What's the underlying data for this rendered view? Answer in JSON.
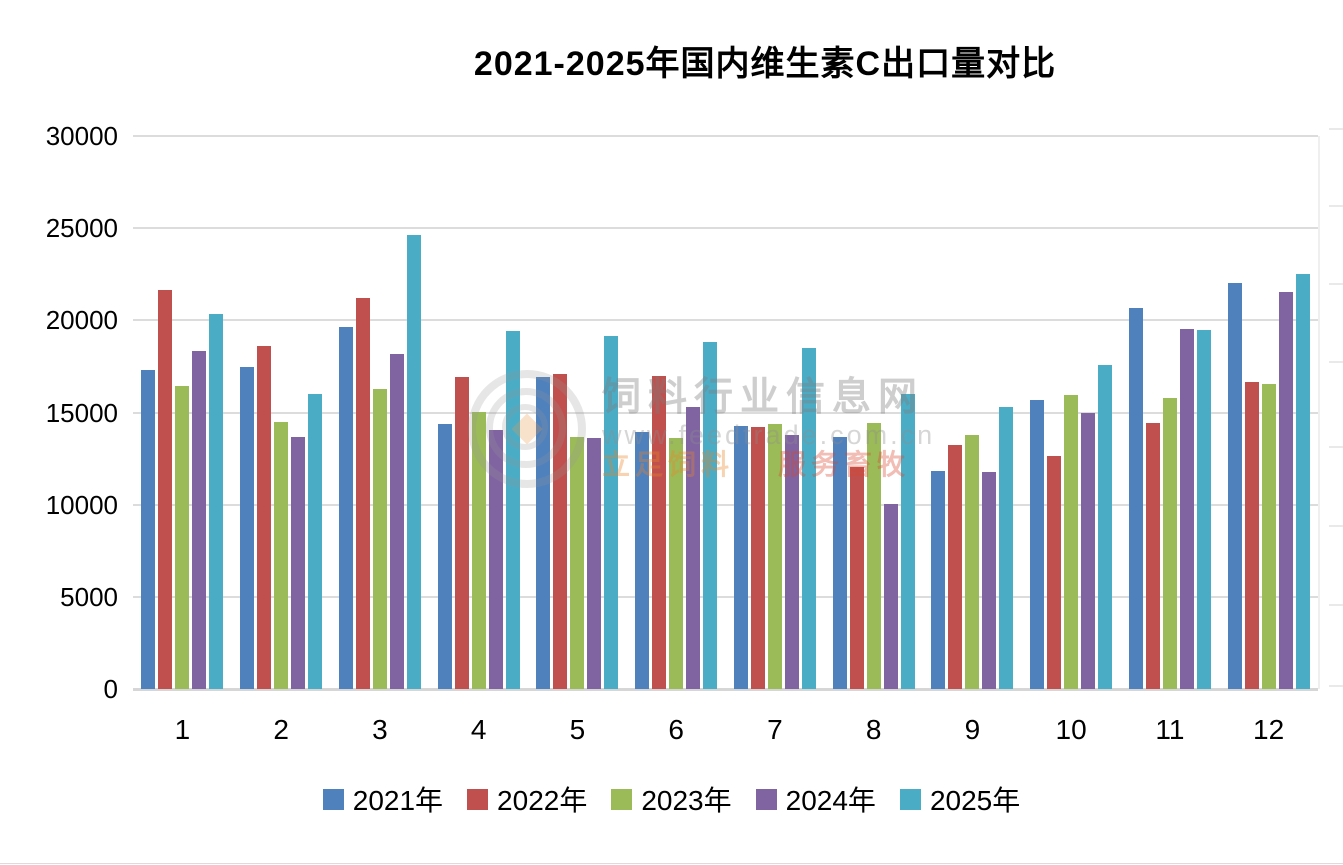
{
  "title": "2021-2025年国内维生素C出口量对比",
  "chart_data": {
    "type": "bar",
    "title": "2021-2025年国内维生素C出口量对比",
    "categories": [
      "1",
      "2",
      "3",
      "4",
      "5",
      "6",
      "7",
      "8",
      "9",
      "10",
      "11",
      "12"
    ],
    "series": [
      {
        "name": "2021年",
        "color": "#4F81BD",
        "values": [
          17300,
          17450,
          19650,
          14400,
          16950,
          13950,
          14250,
          13650,
          11800,
          15700,
          20650,
          22000
        ]
      },
      {
        "name": "2022年",
        "color": "#C0504D",
        "values": [
          21650,
          18600,
          21200,
          16900,
          17100,
          17000,
          14200,
          12050,
          13250,
          12650,
          14450,
          16650
        ]
      },
      {
        "name": "2023年",
        "color": "#9BBB59",
        "values": [
          16450,
          14500,
          16250,
          15000,
          13650,
          13600,
          14400,
          14450,
          13800,
          15950,
          15800,
          16550
        ]
      },
      {
        "name": "2024年",
        "color": "#8064A2",
        "values": [
          18350,
          13650,
          18200,
          14050,
          13600,
          15300,
          13800,
          10050,
          11750,
          14950,
          19550,
          21550
        ]
      },
      {
        "name": "2025年",
        "color": "#4BACC6",
        "values": [
          20350,
          16000,
          24650,
          19400,
          19150,
          18850,
          18500,
          16000,
          15300,
          17600,
          19450,
          22500
        ]
      }
    ],
    "ylim": [
      0,
      30000
    ],
    "yticks": [
      0,
      5000,
      10000,
      15000,
      20000,
      25000,
      30000
    ],
    "xlabel": "",
    "ylabel": "",
    "grid": "horizontal",
    "legend_position": "bottom"
  },
  "watermark": {
    "line1": "饲料行业信息网",
    "line2": "www.feedtrade.com.cn",
    "tag1": "立足饲料",
    "tag2": "服务畜牧"
  }
}
